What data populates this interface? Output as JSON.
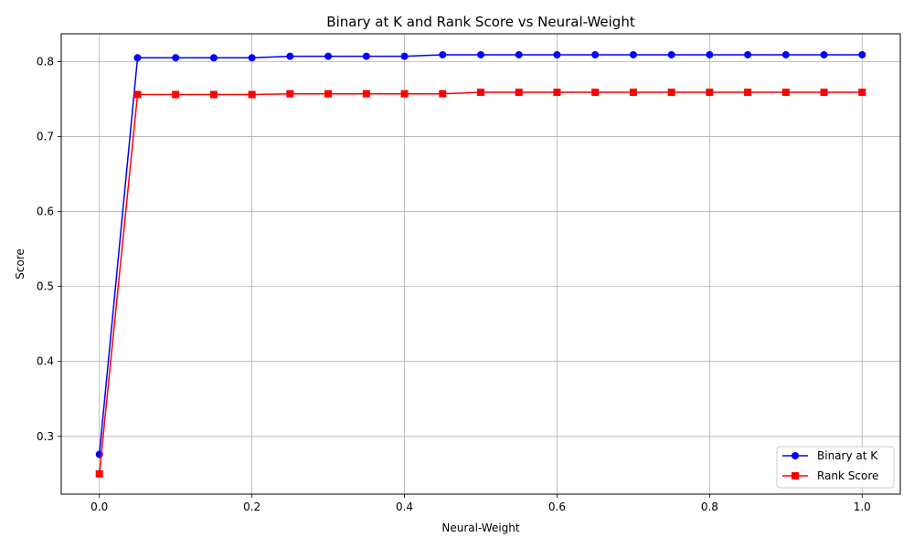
{
  "chart_data": {
    "type": "line",
    "title": "Binary at K and Rank Score vs Neural-Weight",
    "xlabel": "Neural-Weight",
    "ylabel": "Score",
    "xlim": [
      -0.05,
      1.05
    ],
    "ylim": [
      0.223,
      0.837
    ],
    "x_ticks": [
      0.0,
      0.2,
      0.4,
      0.6,
      0.8,
      1.0
    ],
    "x_tick_labels": [
      "0.0",
      "0.2",
      "0.4",
      "0.6",
      "0.8",
      "1.0"
    ],
    "y_ticks": [
      0.3,
      0.4,
      0.5,
      0.6,
      0.7,
      0.8
    ],
    "y_tick_labels": [
      "0.3",
      "0.4",
      "0.5",
      "0.6",
      "0.7",
      "0.8"
    ],
    "grid": true,
    "legend_position": "lower-right",
    "x": [
      0.0,
      0.05,
      0.1,
      0.15,
      0.2,
      0.25,
      0.3,
      0.35,
      0.4,
      0.45,
      0.5,
      0.55,
      0.6,
      0.65,
      0.7,
      0.75,
      0.8,
      0.85,
      0.9,
      0.95,
      1.0
    ],
    "series": [
      {
        "name": "Binary at K",
        "color": "#0000ff",
        "marker": "circle",
        "values": [
          0.276,
          0.805,
          0.805,
          0.805,
          0.805,
          0.807,
          0.807,
          0.807,
          0.807,
          0.809,
          0.809,
          0.809,
          0.809,
          0.809,
          0.809,
          0.809,
          0.809,
          0.809,
          0.809,
          0.809,
          0.809
        ]
      },
      {
        "name": "Rank Score",
        "color": "#ff0000",
        "marker": "square",
        "values": [
          0.25,
          0.756,
          0.756,
          0.756,
          0.756,
          0.757,
          0.757,
          0.757,
          0.757,
          0.757,
          0.759,
          0.759,
          0.759,
          0.759,
          0.759,
          0.759,
          0.759,
          0.759,
          0.759,
          0.759,
          0.759
        ]
      }
    ]
  }
}
